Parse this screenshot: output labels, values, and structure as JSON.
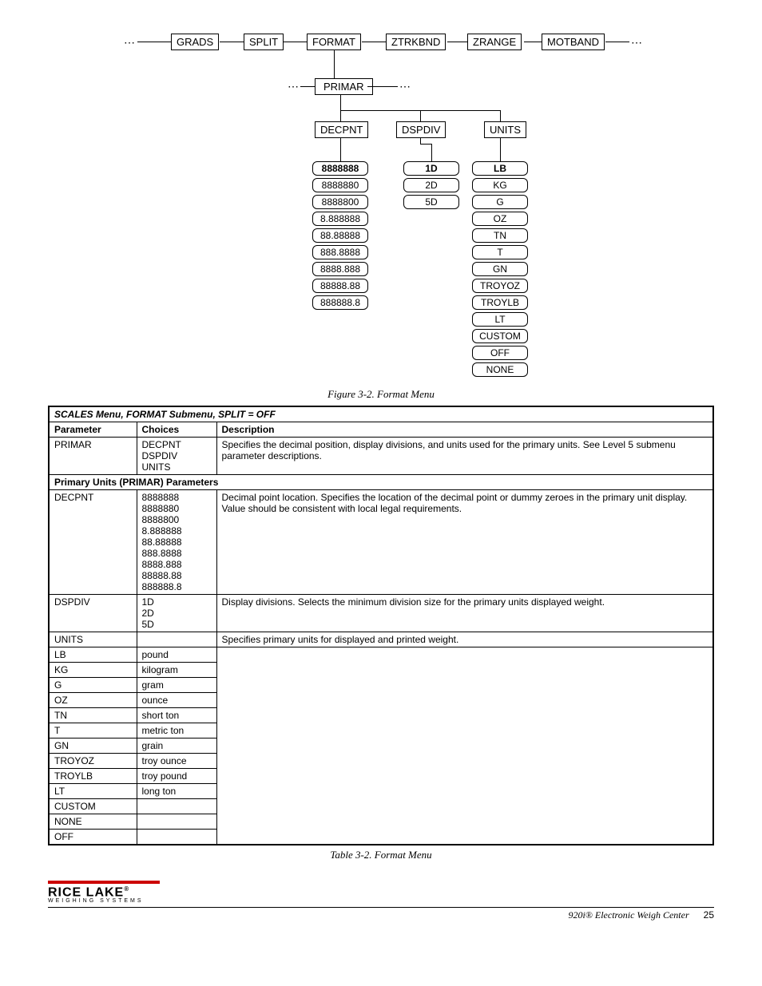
{
  "diagram": {
    "top": [
      "GRADS",
      "SPLIT",
      "FORMAT",
      "ZTRKBND",
      "ZRANGE",
      "MOTBAND"
    ],
    "mid": "PRIMAR",
    "sub": [
      "DECPNT",
      "DSPDIV",
      "UNITS"
    ],
    "decpnt": [
      "8888888",
      "8888880",
      "8888800",
      "8.888888",
      "88.88888",
      "888.8888",
      "8888.888",
      "88888.88",
      "888888.8"
    ],
    "dspdiv": [
      "1D",
      "2D",
      "5D"
    ],
    "units": [
      "LB",
      "KG",
      "G",
      "OZ",
      "TN",
      "T",
      "GN",
      "TROYOZ",
      "TROYLB",
      "LT",
      "CUSTOM",
      "OFF",
      "NONE"
    ],
    "caption": "Figure 3-2. Format Menu"
  },
  "table": {
    "title": "SCALES Menu, FORMAT Submenu, SPLIT = OFF",
    "headers": [
      "Parameter",
      "Choices",
      "Description"
    ],
    "primar": {
      "param": "PRIMAR",
      "choices": [
        "DECPNT",
        "DSPDIV",
        "UNITS"
      ],
      "desc": "Specifies the decimal position, display divisions, and units used for the primary units. See Level 5 submenu parameter descriptions."
    },
    "section": "Primary Units (PRIMAR) Parameters",
    "decpnt": {
      "param": "DECPNT",
      "choices": [
        "8888888",
        "8888880",
        "8888800",
        "8.888888",
        "88.88888",
        "888.8888",
        "8888.888",
        "88888.88",
        "888888.8"
      ],
      "desc": "Decimal point location. Specifies the location of the decimal point or dummy zeroes in the primary unit display. Value should be consistent with local legal requirements."
    },
    "dspdiv": {
      "param": "DSPDIV",
      "choices": [
        "1D",
        "2D",
        "5D"
      ],
      "desc": "Display divisions. Selects the minimum division size for the primary units displayed weight."
    },
    "units": {
      "param": "UNITS",
      "intro": "Specifies primary units for displayed and printed weight.",
      "rows": [
        {
          "c": "LB",
          "d": "pound"
        },
        {
          "c": "KG",
          "d": "kilogram"
        },
        {
          "c": "G",
          "d": "gram"
        },
        {
          "c": "OZ",
          "d": "ounce"
        },
        {
          "c": "TN",
          "d": "short ton"
        },
        {
          "c": "T",
          "d": "metric ton"
        },
        {
          "c": "GN",
          "d": "grain"
        },
        {
          "c": "TROYOZ",
          "d": "troy ounce"
        },
        {
          "c": "TROYLB",
          "d": "troy pound"
        },
        {
          "c": "LT",
          "d": "long ton"
        },
        {
          "c": "CUSTOM",
          "d": ""
        },
        {
          "c": "NONE",
          "d": ""
        },
        {
          "c": "OFF",
          "d": ""
        }
      ]
    },
    "caption": "Table 3-2. Format Menu"
  },
  "footer": {
    "brand": "RICE LAKE",
    "sub": "WEIGHING SYSTEMS",
    "doc": "920i® Electronic Weigh Center",
    "page": "25"
  }
}
